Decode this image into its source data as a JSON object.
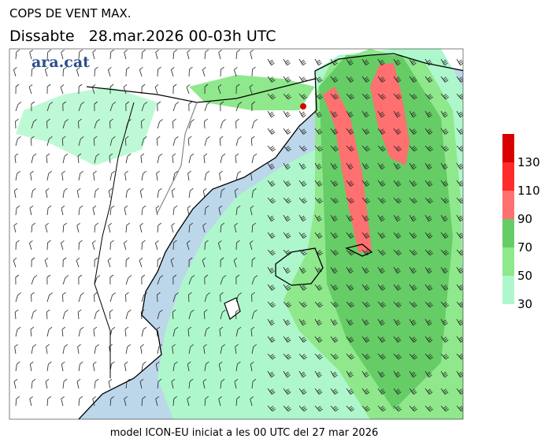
{
  "header": {
    "title": "COPS DE VENT MAX.",
    "subtitle": "Dissabte   28.mar.2026 00-03h UTC",
    "logo": "ara.cat"
  },
  "legend": {
    "levels": [
      30,
      50,
      70,
      90,
      110,
      130
    ],
    "colors": [
      "#aef7cc",
      "#8fe88c",
      "#66cc66",
      "#ff7070",
      "#ff2a2a",
      "#d90000"
    ]
  },
  "footer": "model ICON-EU iniciat a les 00 UTC del 27 mar 2026"
}
